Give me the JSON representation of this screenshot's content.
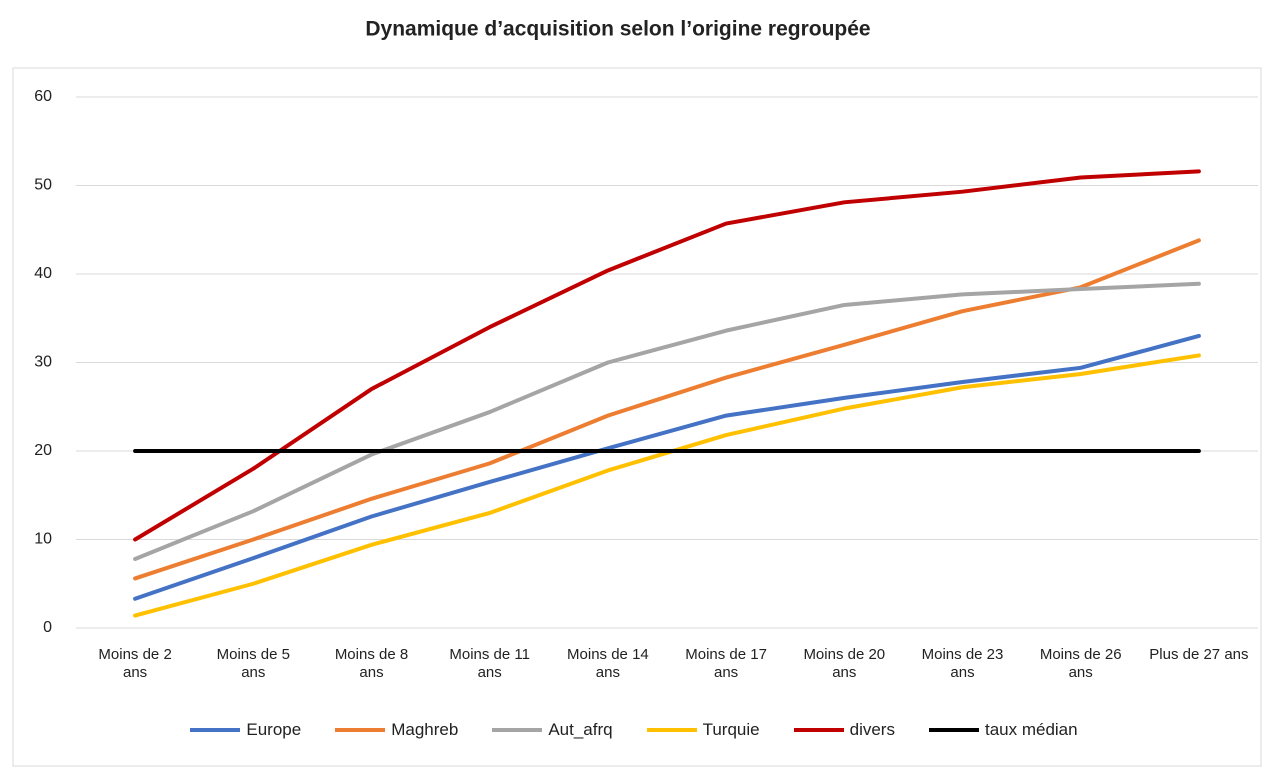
{
  "chart_data": {
    "type": "line",
    "title": "Dynamique d’acquisition selon l’origine regroupée",
    "categories": [
      "Moins de 2 ans",
      "Moins de 5 ans",
      "Moins de 8 ans",
      "Moins de 11 ans",
      "Moins de 14 ans",
      "Moins de 17 ans",
      "Moins de 20 ans",
      "Moins de 23 ans",
      "Moins de 26 ans",
      "Plus de 27 ans"
    ],
    "series": [
      {
        "name": "Europe",
        "color": "#4472c4",
        "values": [
          3.3,
          7.9,
          12.6,
          16.5,
          20.3,
          24,
          26,
          27.8,
          29.4,
          33
        ]
      },
      {
        "name": "Maghreb",
        "color": "#ed7d31",
        "values": [
          5.6,
          10,
          14.6,
          18.6,
          24,
          28.3,
          32,
          35.8,
          38.5,
          43.8
        ]
      },
      {
        "name": "Aut_afrq",
        "color": "#a5a5a5",
        "values": [
          7.8,
          13.2,
          19.6,
          24.4,
          30,
          33.6,
          36.5,
          37.7,
          38.3,
          38.9
        ]
      },
      {
        "name": "Turquie",
        "color": "#ffc000",
        "values": [
          1.4,
          5,
          9.4,
          13,
          17.8,
          21.8,
          24.8,
          27.2,
          28.7,
          30.8
        ]
      },
      {
        "name": "divers",
        "color": "#c00000",
        "values": [
          10,
          18,
          27,
          34,
          40.4,
          45.7,
          48.1,
          49.3,
          50.9,
          51.6
        ]
      },
      {
        "name": "taux médian",
        "color": "#000000",
        "values": [
          20,
          20,
          20,
          20,
          20,
          20,
          20,
          20,
          20,
          20
        ]
      }
    ],
    "ylim": [
      0,
      60
    ],
    "yticks": [
      0,
      10,
      20,
      30,
      40,
      50,
      60
    ],
    "grid": true,
    "legend": "bottom"
  }
}
